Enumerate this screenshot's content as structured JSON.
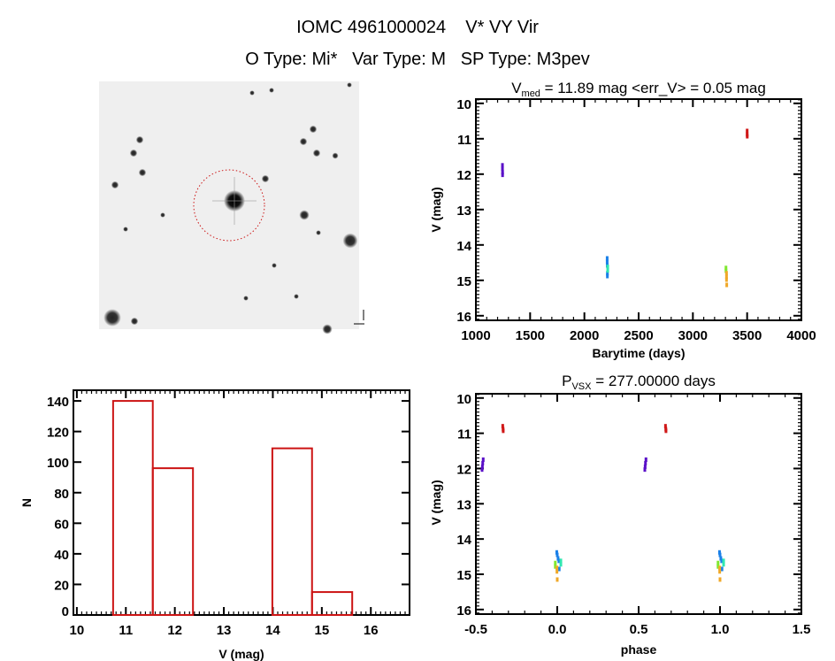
{
  "header": {
    "title_line1": "IOMC 4961000024    V* VY Vir",
    "title_line2": "O Type: Mi*   Var Type: M   SP Type: M3pev"
  },
  "colors": {
    "axes": "#000000",
    "histogram": "#cc1414",
    "aperture_circle": "#cc1414",
    "purple": "#5a10c8",
    "red": "#d01818",
    "blue": "#1a80e8",
    "cyan": "#30e8b0",
    "green": "#80e830",
    "orange": "#f0a828"
  },
  "image_panel": {
    "type": "star-field-finder-chart",
    "aperture": "dotted red circle around target"
  },
  "chart_data": [
    {
      "id": "light_curve",
      "type": "scatter",
      "title_main": "V",
      "title_sub": "med",
      "title_rest": " = 11.89 mag <err_V> = 0.05 mag",
      "xlabel": "Barytime (days)",
      "ylabel": "V (mag)",
      "xlim": [
        1000,
        4000
      ],
      "ylim": [
        16.13,
        9.88
      ],
      "y_reversed": true,
      "xticks": [
        1000,
        1500,
        2000,
        2500,
        3000,
        3500,
        4000
      ],
      "yticks": [
        10,
        11,
        12,
        13,
        14,
        15,
        16
      ],
      "points": [
        {
          "x": 1245,
          "y": 11.75,
          "c": "purple"
        },
        {
          "x": 1245,
          "y": 11.85,
          "c": "purple"
        },
        {
          "x": 1246,
          "y": 11.95,
          "c": "purple"
        },
        {
          "x": 1246,
          "y": 12.02,
          "c": "purple"
        },
        {
          "x": 2210,
          "y": 14.38,
          "c": "blue"
        },
        {
          "x": 2210,
          "y": 14.48,
          "c": "blue"
        },
        {
          "x": 2211,
          "y": 14.58,
          "c": "blue"
        },
        {
          "x": 2212,
          "y": 14.8,
          "c": "blue"
        },
        {
          "x": 2212,
          "y": 14.88,
          "c": "blue"
        },
        {
          "x": 2215,
          "y": 14.62,
          "c": "cyan"
        },
        {
          "x": 2215,
          "y": 14.72,
          "c": "cyan"
        },
        {
          "x": 3305,
          "y": 14.65,
          "c": "green"
        },
        {
          "x": 3305,
          "y": 14.73,
          "c": "green"
        },
        {
          "x": 3310,
          "y": 14.8,
          "c": "orange"
        },
        {
          "x": 3310,
          "y": 14.9,
          "c": "orange"
        },
        {
          "x": 3310,
          "y": 14.98,
          "c": "orange"
        },
        {
          "x": 3312,
          "y": 15.13,
          "c": "orange"
        },
        {
          "x": 3500,
          "y": 10.78,
          "c": "red"
        },
        {
          "x": 3500,
          "y": 10.88,
          "c": "red"
        },
        {
          "x": 3501,
          "y": 10.93,
          "c": "red"
        }
      ]
    },
    {
      "id": "histogram",
      "type": "bar",
      "xlabel": "V (mag)",
      "ylabel": "N",
      "xlim": [
        9.93,
        16.79
      ],
      "ylim": [
        0,
        147
      ],
      "xticks": [
        10,
        11,
        12,
        13,
        14,
        15,
        16
      ],
      "yticks": [
        0,
        20,
        40,
        60,
        80,
        100,
        120,
        140
      ],
      "bin_edges": [
        10.74,
        11.55,
        12.37,
        13.18,
        13.99,
        14.8,
        15.62
      ],
      "counts": [
        140,
        96,
        0,
        0,
        109,
        15
      ]
    },
    {
      "id": "phased_curve",
      "type": "scatter",
      "title_main": "P",
      "title_sub": "VSX",
      "title_rest": " = 277.00000 days",
      "xlabel": "phase",
      "ylabel": "V (mag)",
      "xlim": [
        -0.5,
        1.5
      ],
      "ylim": [
        16.13,
        9.88
      ],
      "y_reversed": true,
      "xticks": [
        "-0.5",
        "0.0",
        "0.5",
        "1.0",
        "1.5"
      ],
      "yticks": [
        10,
        11,
        12,
        13,
        14,
        15,
        16
      ],
      "repeat_phase_plus_one": true,
      "points": [
        {
          "x": -0.455,
          "y": 11.75,
          "c": "purple"
        },
        {
          "x": -0.458,
          "y": 11.85,
          "c": "purple"
        },
        {
          "x": -0.46,
          "y": 11.95,
          "c": "purple"
        },
        {
          "x": -0.462,
          "y": 12.03,
          "c": "purple"
        },
        {
          "x": -0.335,
          "y": 10.8,
          "c": "red"
        },
        {
          "x": -0.333,
          "y": 10.88,
          "c": "red"
        },
        {
          "x": -0.332,
          "y": 10.93,
          "c": "red"
        },
        {
          "x": -0.003,
          "y": 14.38,
          "c": "blue"
        },
        {
          "x": 0.0,
          "y": 14.45,
          "c": "blue"
        },
        {
          "x": 0.005,
          "y": 14.55,
          "c": "blue"
        },
        {
          "x": 0.01,
          "y": 14.62,
          "c": "blue"
        },
        {
          "x": 0.012,
          "y": 14.85,
          "c": "blue"
        },
        {
          "x": 0.022,
          "y": 14.62,
          "c": "cyan"
        },
        {
          "x": 0.022,
          "y": 14.72,
          "c": "cyan"
        },
        {
          "x": -0.012,
          "y": 14.68,
          "c": "green"
        },
        {
          "x": -0.012,
          "y": 14.78,
          "c": "green"
        },
        {
          "x": -0.002,
          "y": 14.82,
          "c": "orange"
        },
        {
          "x": -0.002,
          "y": 14.92,
          "c": "orange"
        },
        {
          "x": 0.0,
          "y": 15.15,
          "c": "orange"
        }
      ]
    }
  ]
}
